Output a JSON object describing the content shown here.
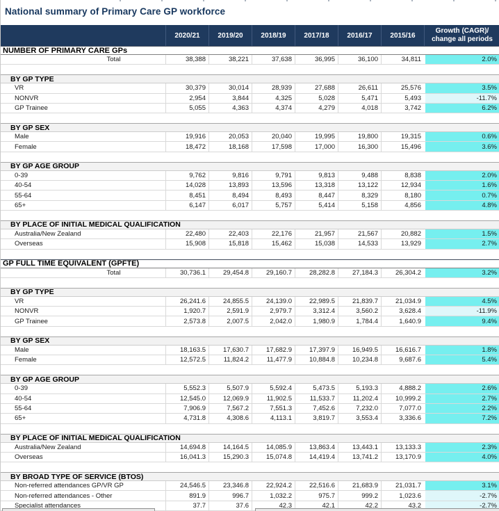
{
  "title": "National summary of Primary Care GP workforce",
  "columns": [
    "2020/21",
    "2019/20",
    "2018/19",
    "2017/18",
    "2016/17",
    "2015/16"
  ],
  "growth_header": {
    "line1": "Growth (CAGR)/",
    "line2": "change all periods"
  },
  "colors": {
    "header_bg": "#1f3a5e",
    "growth_positive_bg": "#76efef",
    "growth_negative_bg": "#dff7fa",
    "section_band_bg": "#f2f2f2",
    "title_color": "#17375E"
  },
  "rows": [
    {
      "type": "major",
      "label": "NUMBER OF PRIMARY CARE GPs"
    },
    {
      "type": "data",
      "label": "Total",
      "center": true,
      "values": [
        "38,388",
        "38,221",
        "37,638",
        "36,995",
        "36,100",
        "34,811"
      ],
      "growth": "2.0%"
    },
    {
      "type": "gap"
    },
    {
      "type": "sub",
      "label": "BY GP TYPE"
    },
    {
      "type": "data",
      "label": "VR",
      "values": [
        "30,379",
        "30,014",
        "28,939",
        "27,688",
        "26,611",
        "25,576"
      ],
      "growth": "3.5%"
    },
    {
      "type": "data",
      "label": "NONVR",
      "values": [
        "2,954",
        "3,844",
        "4,325",
        "5,028",
        "5,471",
        "5,493"
      ],
      "growth": "-11.7%",
      "neg": true
    },
    {
      "type": "data",
      "label": "GP Trainee",
      "values": [
        "5,055",
        "4,363",
        "4,374",
        "4,279",
        "4,018",
        "3,742"
      ],
      "growth": "6.2%"
    },
    {
      "type": "gap"
    },
    {
      "type": "sub",
      "label": "BY GP SEX"
    },
    {
      "type": "data",
      "label": "Male",
      "values": [
        "19,916",
        "20,053",
        "20,040",
        "19,995",
        "19,800",
        "19,315"
      ],
      "growth": "0.6%"
    },
    {
      "type": "data",
      "label": "Female",
      "values": [
        "18,472",
        "18,168",
        "17,598",
        "17,000",
        "16,300",
        "15,496"
      ],
      "growth": "3.6%"
    },
    {
      "type": "gap"
    },
    {
      "type": "sub",
      "label": "BY GP AGE GROUP"
    },
    {
      "type": "data",
      "label": "0-39",
      "values": [
        "9,762",
        "9,816",
        "9,791",
        "9,813",
        "9,488",
        "8,838"
      ],
      "growth": "2.0%"
    },
    {
      "type": "data",
      "label": "40-54",
      "values": [
        "14,028",
        "13,893",
        "13,596",
        "13,318",
        "13,122",
        "12,934"
      ],
      "growth": "1.6%"
    },
    {
      "type": "data",
      "label": "55-64",
      "values": [
        "8,451",
        "8,494",
        "8,493",
        "8,447",
        "8,329",
        "8,180"
      ],
      "growth": "0.7%"
    },
    {
      "type": "data",
      "label": "65+",
      "values": [
        "6,147",
        "6,017",
        "5,757",
        "5,414",
        "5,158",
        "4,856"
      ],
      "growth": "4.8%"
    },
    {
      "type": "gap"
    },
    {
      "type": "sub",
      "label": "BY PLACE OF INITIAL MEDICAL QUALIFICATION"
    },
    {
      "type": "data",
      "label": "Australia/New Zealand",
      "values": [
        "22,480",
        "22,403",
        "22,176",
        "21,957",
        "21,567",
        "20,882"
      ],
      "growth": "1.5%"
    },
    {
      "type": "data",
      "label": "Overseas",
      "values": [
        "15,908",
        "15,818",
        "15,462",
        "15,038",
        "14,533",
        "13,929"
      ],
      "growth": "2.7%"
    },
    {
      "type": "gap"
    },
    {
      "type": "major",
      "label": "GP FULL TIME EQUIVALENT (GPFTE)"
    },
    {
      "type": "data",
      "label": "Total",
      "center": true,
      "values": [
        "30,736.1",
        "29,454.8",
        "29,160.7",
        "28,282.8",
        "27,184.3",
        "26,304.2"
      ],
      "growth": "3.2%"
    },
    {
      "type": "gap"
    },
    {
      "type": "sub",
      "label": "BY GP TYPE"
    },
    {
      "type": "data",
      "label": "VR",
      "values": [
        "26,241.6",
        "24,855.5",
        "24,139.0",
        "22,989.5",
        "21,839.7",
        "21,034.9"
      ],
      "growth": "4.5%"
    },
    {
      "type": "data",
      "label": "NONVR",
      "values": [
        "1,920.7",
        "2,591.9",
        "2,979.7",
        "3,312.4",
        "3,560.2",
        "3,628.4"
      ],
      "growth": "-11.9%",
      "neg": true
    },
    {
      "type": "data",
      "label": "GP Trainee",
      "values": [
        "2,573.8",
        "2,007.5",
        "2,042.0",
        "1,980.9",
        "1,784.4",
        "1,640.9"
      ],
      "growth": "9.4%"
    },
    {
      "type": "gap"
    },
    {
      "type": "sub",
      "label": "BY GP SEX"
    },
    {
      "type": "data",
      "label": "Male",
      "values": [
        "18,163.5",
        "17,630.7",
        "17,682.9",
        "17,397.9",
        "16,949.5",
        "16,616.7"
      ],
      "growth": "1.8%"
    },
    {
      "type": "data",
      "label": "Female",
      "values": [
        "12,572.5",
        "11,824.2",
        "11,477.9",
        "10,884.8",
        "10,234.8",
        "9,687.6"
      ],
      "growth": "5.4%"
    },
    {
      "type": "gap"
    },
    {
      "type": "sub",
      "label": "BY GP AGE GROUP"
    },
    {
      "type": "data",
      "label": "0-39",
      "values": [
        "5,552.3",
        "5,507.9",
        "5,592.4",
        "5,473.5",
        "5,193.3",
        "4,888.2"
      ],
      "growth": "2.6%"
    },
    {
      "type": "data",
      "label": "40-54",
      "values": [
        "12,545.0",
        "12,069.9",
        "11,902.5",
        "11,533.7",
        "11,202.4",
        "10,999.2"
      ],
      "growth": "2.7%"
    },
    {
      "type": "data",
      "label": "55-64",
      "values": [
        "7,906.9",
        "7,567.2",
        "7,551.3",
        "7,452.6",
        "7,232.0",
        "7,077.0"
      ],
      "growth": "2.2%"
    },
    {
      "type": "data",
      "label": "65+",
      "values": [
        "4,731.8",
        "4,308.6",
        "4,113.1",
        "3,819.7",
        "3,553.4",
        "3,336.6"
      ],
      "growth": "7.2%"
    },
    {
      "type": "gap"
    },
    {
      "type": "sub",
      "label": "BY PLACE OF INITIAL MEDICAL QUALIFICATION"
    },
    {
      "type": "data",
      "label": "Australia/New Zealand",
      "values": [
        "14,694.8",
        "14,164.5",
        "14,085.9",
        "13,863.4",
        "13,443.1",
        "13,133.3"
      ],
      "growth": "2.3%"
    },
    {
      "type": "data",
      "label": "Overseas",
      "values": [
        "16,041.3",
        "15,290.3",
        "15,074.8",
        "14,419.4",
        "13,741.2",
        "13,170.9"
      ],
      "growth": "4.0%"
    },
    {
      "type": "gap"
    },
    {
      "type": "sub",
      "label": "BY BROAD TYPE OF SERVICE (BTOS)"
    },
    {
      "type": "data",
      "label": "Non-referred attendances GP/VR GP",
      "values": [
        "24,546.5",
        "23,346.8",
        "22,924.2",
        "22,516.6",
        "21,683.9",
        "21,031.7"
      ],
      "growth": "3.1%"
    },
    {
      "type": "data",
      "label": "Non-referred attendances - Other",
      "values": [
        "891.9",
        "996.7",
        "1,032.2",
        "975.7",
        "999.2",
        "1,023.6"
      ],
      "growth": "-2.7%",
      "neg": true
    },
    {
      "type": "data",
      "label": "Specialist attendances",
      "values": [
        "37.7",
        "37.6",
        "42.3",
        "42.1",
        "42.2",
        "43.2"
      ],
      "growth": "-2.7%",
      "neg": true
    }
  ]
}
